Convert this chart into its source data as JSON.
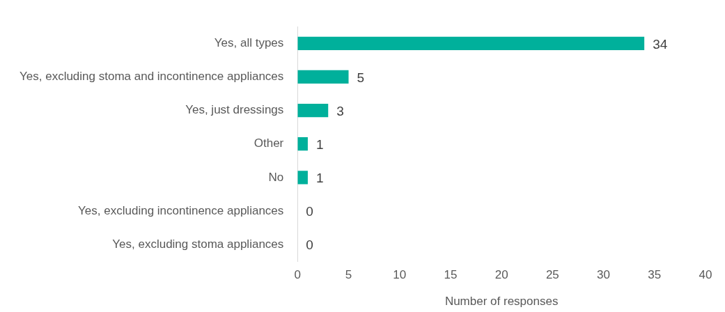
{
  "chart_data": {
    "type": "bar",
    "orientation": "horizontal",
    "xlabel": "Number of responses",
    "categories": [
      "Yes, all types",
      "Yes, excluding stoma and incontinence appliances",
      "Yes, just dressings",
      "Other",
      "No",
      "Yes, excluding incontinence appliances",
      "Yes, excluding stoma appliances"
    ],
    "values": [
      34,
      5,
      3,
      1,
      1,
      0,
      0
    ],
    "color": "#00b09b",
    "xlim": [
      0,
      40
    ],
    "xticks": [
      0,
      5,
      10,
      15,
      20,
      25,
      30,
      35,
      40
    ],
    "grid": false,
    "legend": false,
    "data_labels": true
  }
}
